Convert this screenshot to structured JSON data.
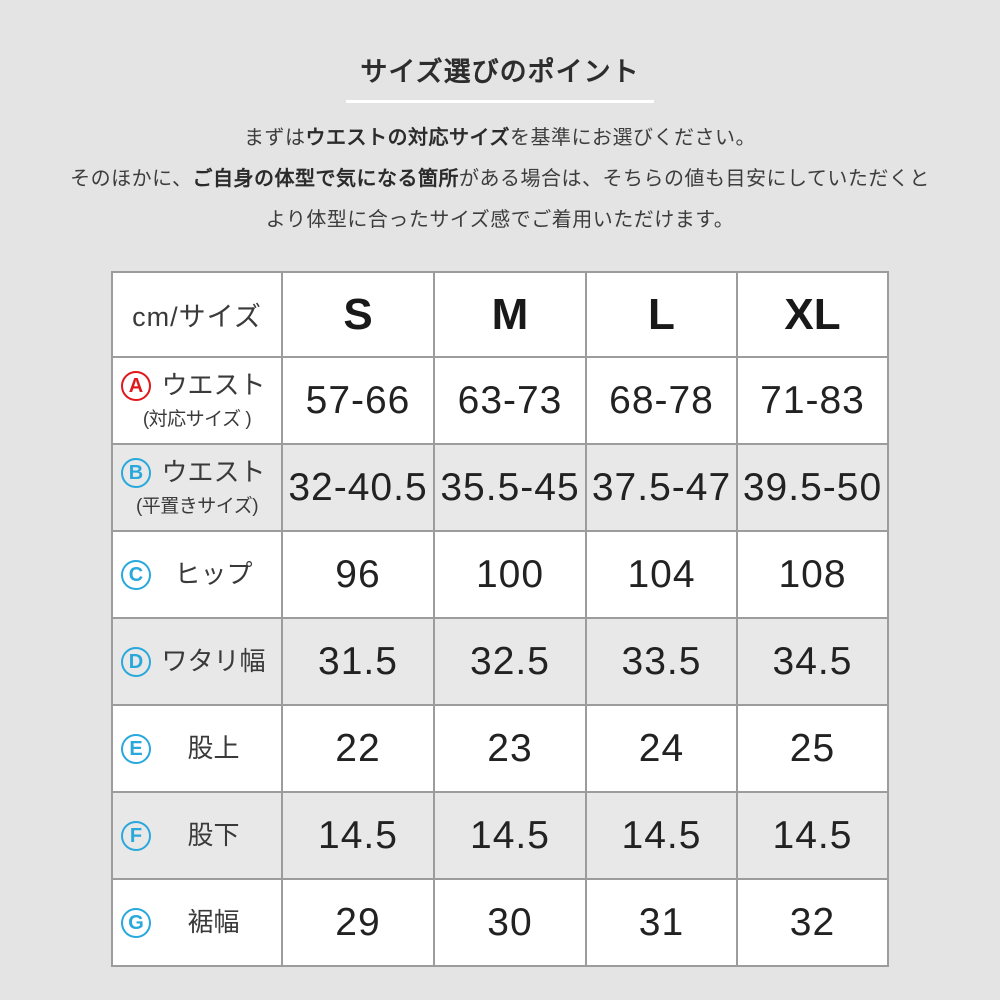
{
  "header": {
    "title": "サイズ選びのポイント"
  },
  "description": {
    "lines": [
      {
        "runs": [
          {
            "text": "まずは",
            "bold": false
          },
          {
            "text": "ウエストの対応サイズ",
            "bold": true
          },
          {
            "text": "を基準にお選びください。",
            "bold": false
          }
        ]
      },
      {
        "runs": [
          {
            "text": "そのほかに、",
            "bold": false
          },
          {
            "text": "ご自身の体型で気になる箇所",
            "bold": true
          },
          {
            "text": "がある場合は、そちらの値も目安にしていただくと",
            "bold": false
          }
        ]
      },
      {
        "runs": [
          {
            "text": "より体型に合ったサイズ感でご着用いただけます。",
            "bold": false
          }
        ]
      }
    ]
  },
  "table": {
    "header": {
      "label": "cm/サイズ",
      "sizes": [
        "S",
        "M",
        "L",
        "XL"
      ]
    },
    "rows": [
      {
        "letter": "A",
        "letter_color": "#e0181d",
        "name": "ウエスト",
        "sub": "(対応サイズ )",
        "values": [
          "57-66",
          "63-73",
          "68-78",
          "71-83"
        ],
        "shaded": false
      },
      {
        "letter": "B",
        "letter_color": "#29a8dc",
        "name": "ウエスト",
        "sub": "(平置きサイズ)",
        "values": [
          "32-40.5",
          "35.5-45",
          "37.5-47",
          "39.5-50"
        ],
        "shaded": true
      },
      {
        "letter": "C",
        "letter_color": "#29a8dc",
        "name": "ヒップ",
        "sub": null,
        "values": [
          "96",
          "100",
          "104",
          "108"
        ],
        "shaded": false
      },
      {
        "letter": "D",
        "letter_color": "#29a8dc",
        "name": "ワタリ幅",
        "sub": null,
        "values": [
          "31.5",
          "32.5",
          "33.5",
          "34.5"
        ],
        "shaded": true
      },
      {
        "letter": "E",
        "letter_color": "#29a8dc",
        "name": "股上",
        "sub": null,
        "values": [
          "22",
          "23",
          "24",
          "25"
        ],
        "shaded": false
      },
      {
        "letter": "F",
        "letter_color": "#29a8dc",
        "name": "股下",
        "sub": null,
        "values": [
          "14.5",
          "14.5",
          "14.5",
          "14.5"
        ],
        "shaded": true
      },
      {
        "letter": "G",
        "letter_color": "#29a8dc",
        "name": "裾幅",
        "sub": null,
        "values": [
          "29",
          "30",
          "31",
          "32"
        ],
        "shaded": false
      }
    ]
  },
  "colors": {
    "background": "#e4e4e4",
    "shaded_row": "#e8e8e8",
    "accent_red": "#e0181d",
    "accent_blue": "#29a8dc",
    "underline": "#ffffff"
  }
}
